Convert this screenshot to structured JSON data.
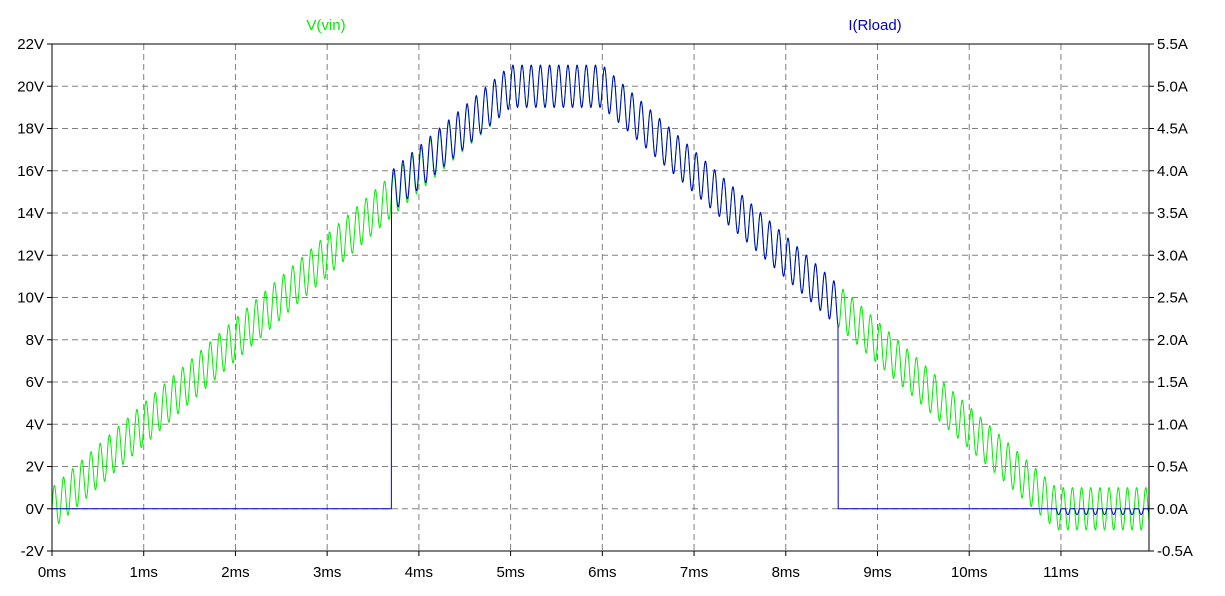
{
  "chart_data": {
    "type": "line",
    "title": "",
    "xlabel": "",
    "ylabel_left": "",
    "ylabel_right": "",
    "grid": true,
    "grid_style": "dashed",
    "x_unit": "ms",
    "xlim": [
      0,
      11.96
    ],
    "ylim_left": [
      -2,
      22
    ],
    "ylim_right": [
      -0.5,
      5.5
    ],
    "x_ticks": [
      0,
      1,
      2,
      3,
      4,
      5,
      6,
      7,
      8,
      9,
      10,
      11
    ],
    "x_tick_labels": [
      "0ms",
      "1ms",
      "2ms",
      "3ms",
      "4ms",
      "5ms",
      "6ms",
      "7ms",
      "8ms",
      "9ms",
      "10ms",
      "11ms"
    ],
    "y_left_ticks": [
      -2,
      0,
      2,
      4,
      6,
      8,
      10,
      12,
      14,
      16,
      18,
      20,
      22
    ],
    "y_left_tick_labels": [
      "-2V",
      "0V",
      "2V",
      "4V",
      "6V",
      "8V",
      "10V",
      "12V",
      "14V",
      "16V",
      "18V",
      "20V",
      "22V"
    ],
    "y_right_ticks": [
      -0.5,
      0,
      0.5,
      1,
      1.5,
      2,
      2.5,
      3,
      3.5,
      4,
      4.5,
      5,
      5.5
    ],
    "y_right_tick_labels": [
      "-0.5A",
      "0.0A",
      "0.5A",
      "1.0A",
      "1.5A",
      "2.0A",
      "2.5A",
      "3.0A",
      "3.5A",
      "4.0A",
      "4.5A",
      "5.0A",
      "5.5A"
    ],
    "series": [
      {
        "name": "V(vin)",
        "axis": "left",
        "color": "#00ee00",
        "envelope": {
          "x": [
            0,
            5,
            6,
            10.95,
            11.96
          ],
          "y": [
            0,
            20,
            20,
            0,
            0
          ]
        },
        "ripple_amplitude": 1,
        "ripple_frequency_khz": 10
      },
      {
        "name": "I(Rload)",
        "axis": "right",
        "color": "#0000cc",
        "conducting_window_ms": [
          3.7,
          8.57
        ],
        "envelope": {
          "x": [
            0,
            3.7,
            3.7,
            5,
            6,
            8.57,
            8.57,
            11.96
          ],
          "y": [
            0,
            0,
            3.75,
            5,
            5,
            2.4,
            0,
            0
          ]
        },
        "ripple_amplitude": 0.25
      }
    ]
  }
}
